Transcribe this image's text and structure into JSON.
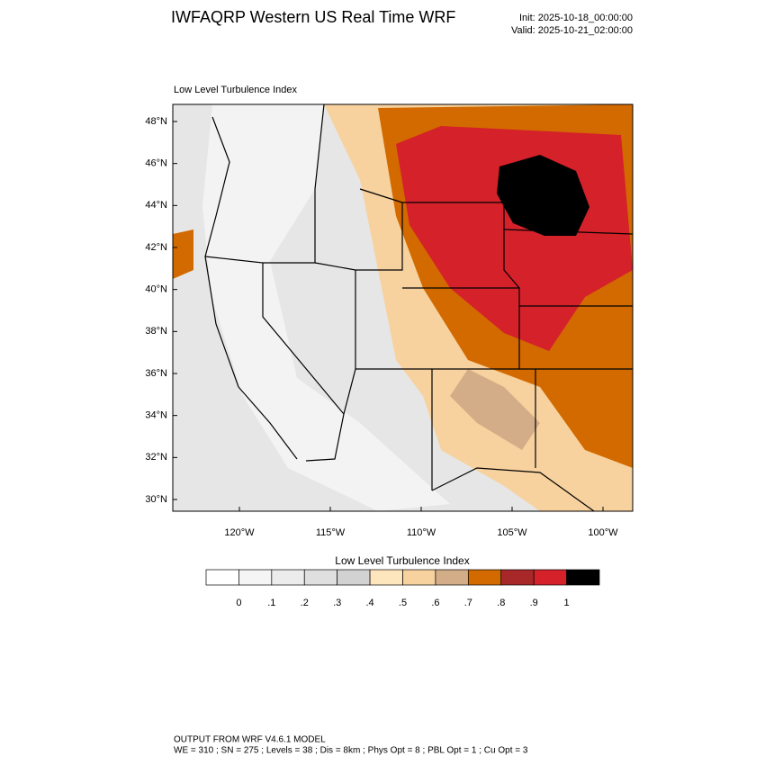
{
  "header": {
    "title": "IWFAQRP Western US Real Time WRF",
    "init": "Init: 2025-10-18_00:00:00",
    "valid": "Valid: 2025-10-21_02:00:00"
  },
  "map": {
    "title": "Low Level Turbulence Index",
    "lat_labels": [
      "48°N",
      "46°N",
      "44°N",
      "42°N",
      "40°N",
      "38°N",
      "36°N",
      "34°N",
      "32°N",
      "30°N"
    ],
    "lon_labels": [
      "120°W",
      "115°W",
      "110°W",
      "105°W",
      "100°W"
    ]
  },
  "colorbar": {
    "title": "Low Level Turbulence Index",
    "colors": [
      "#ffffff",
      "#f5f5f5",
      "#ececec",
      "#dfdfdf",
      "#d2d2d2",
      "#fde6bd",
      "#f7d29f",
      "#d2ad87",
      "#d26a00",
      "#a8282a",
      "#d5212a",
      "#000000"
    ],
    "labels": [
      "0",
      ".1",
      ".2",
      ".3",
      ".4",
      ".5",
      ".6",
      ".7",
      ".8",
      ".9",
      "1"
    ]
  },
  "footer": {
    "line1": "OUTPUT FROM WRF V4.6.1 MODEL",
    "line2": "WE = 310 ; SN = 275 ; Levels = 38 ; Dis = 8km ; Phys Opt = 8 ; PBL Opt = 1 ; Cu Opt = 3"
  }
}
